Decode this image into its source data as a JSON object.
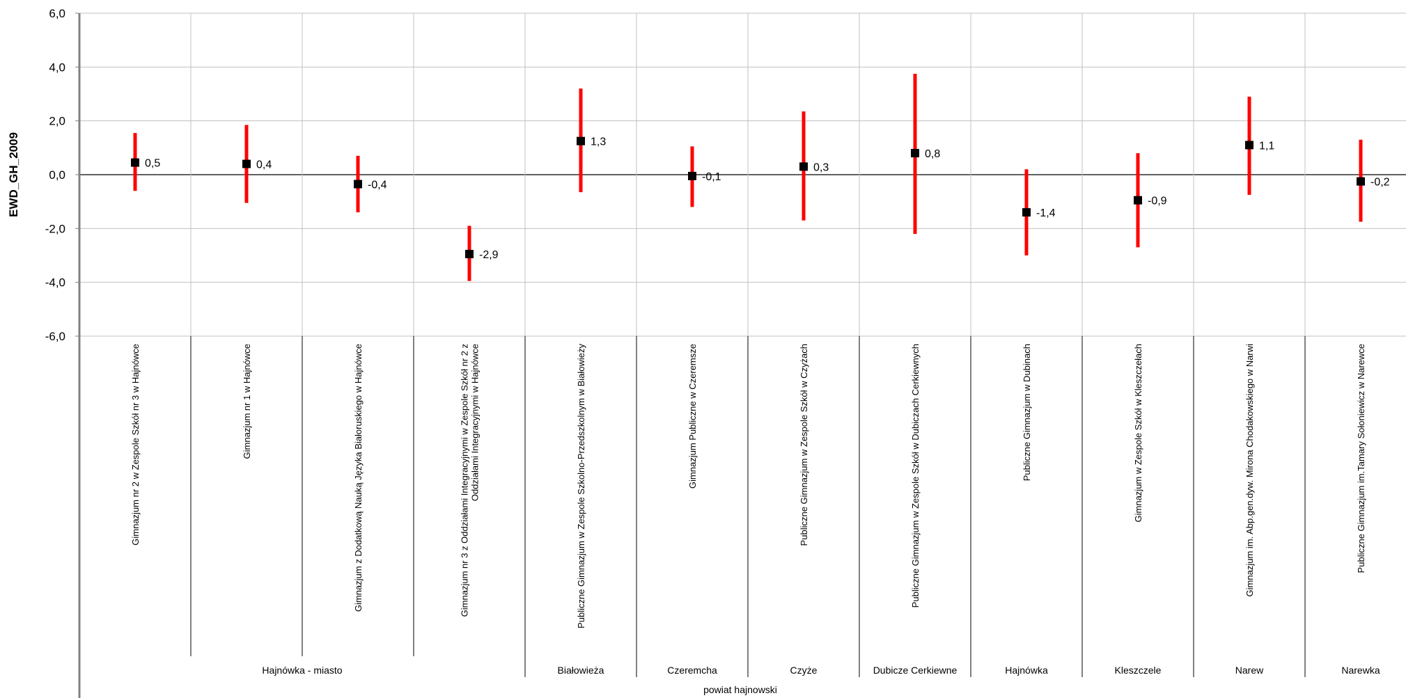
{
  "chart_data": {
    "type": "scatter",
    "ylabel": "EWD_GH_2009",
    "ylim": [
      -6.0,
      6.0
    ],
    "yticks": [
      "6,0",
      "4,0",
      "2,0",
      "0,0",
      "-2,0",
      "-4,0",
      "-6,0"
    ],
    "grid": true,
    "schools": [
      {
        "label": "Gimnazjum nr 2  w Zespole Szkół nr 3 w Hajnówce",
        "value": 0.45,
        "value_label": "0,5",
        "ci_low": -0.6,
        "ci_high": 1.55
      },
      {
        "label": "Gimnazjum nr 1 w Hajnówce",
        "value": 0.4,
        "value_label": "0,4",
        "ci_low": -1.05,
        "ci_high": 1.85
      },
      {
        "label": "Gimnazjum z Dodatkową Nauką Języka Białoruskiego w Hajnówce",
        "value": -0.35,
        "value_label": "-0,4",
        "ci_low": -1.4,
        "ci_high": 0.7
      },
      {
        "label": "Gimnazjum nr 3 z Oddziałami Integracyjnymi w Zespole Szkół nr 2 z Oddziałami Integracyjnymi w Hajnówce",
        "value": -2.95,
        "value_label": "-2,9",
        "ci_low": -3.95,
        "ci_high": -1.9
      },
      {
        "label": "Publiczne Gimnazjum w Zespole Szkolno-Przedszkolnym w Białowieży",
        "value": 1.25,
        "value_label": "1,3",
        "ci_low": -0.65,
        "ci_high": 3.2
      },
      {
        "label": "Gimnazjum Publiczne w Czeremsze",
        "value": -0.05,
        "value_label": "-0,1",
        "ci_low": -1.2,
        "ci_high": 1.05
      },
      {
        "label": "Publiczne Gimnazjum w Zespole Szkół w Czyżach",
        "value": 0.3,
        "value_label": "0,3",
        "ci_low": -1.7,
        "ci_high": 2.35
      },
      {
        "label": "Publiczne Gimnazjum w Zespole Szkół w Dubiczach Cerkiewnych",
        "value": 0.8,
        "value_label": "0,8",
        "ci_low": -2.2,
        "ci_high": 3.75
      },
      {
        "label": "Publiczne Gimnazjum w Dubinach",
        "value": -1.4,
        "value_label": "-1,4",
        "ci_low": -3.0,
        "ci_high": 0.2
      },
      {
        "label": "Gimnazjum w Zespole Szkół w Kleszczełach",
        "value": -0.95,
        "value_label": "-0,9",
        "ci_low": -2.7,
        "ci_high": 0.8
      },
      {
        "label": "Gimnazjum im. Abp.gen.dyw. Mirona Chodakowskiego w Narwi",
        "value": 1.1,
        "value_label": "1,1",
        "ci_low": -0.75,
        "ci_high": 2.9
      },
      {
        "label": "Publiczne Gimnazjum im.Tamary Sołoniewicz w Narewce",
        "value": -0.25,
        "value_label": "-0,2",
        "ci_low": -1.75,
        "ci_high": 1.3
      }
    ],
    "groups": [
      {
        "name": "Hajnówka - miasto",
        "start": 0,
        "count": 4
      },
      {
        "name": "Białowieża",
        "start": 4,
        "count": 1
      },
      {
        "name": "Czeremcha",
        "start": 5,
        "count": 1
      },
      {
        "name": "Czyże",
        "start": 6,
        "count": 1
      },
      {
        "name": "Dubicze Cerkiewne",
        "start": 7,
        "count": 1
      },
      {
        "name": "Hajnówka",
        "start": 8,
        "count": 1
      },
      {
        "name": "Kleszczele",
        "start": 9,
        "count": 1
      },
      {
        "name": "Narew",
        "start": 10,
        "count": 1
      },
      {
        "name": "Narewka",
        "start": 11,
        "count": 1
      }
    ],
    "county_label": "powiat hajnowski",
    "colors": {
      "interval": "#ff0000",
      "point": "#000000",
      "grid": "#c0c0c0",
      "axis": "#808080",
      "zero_line": "#000000"
    }
  }
}
